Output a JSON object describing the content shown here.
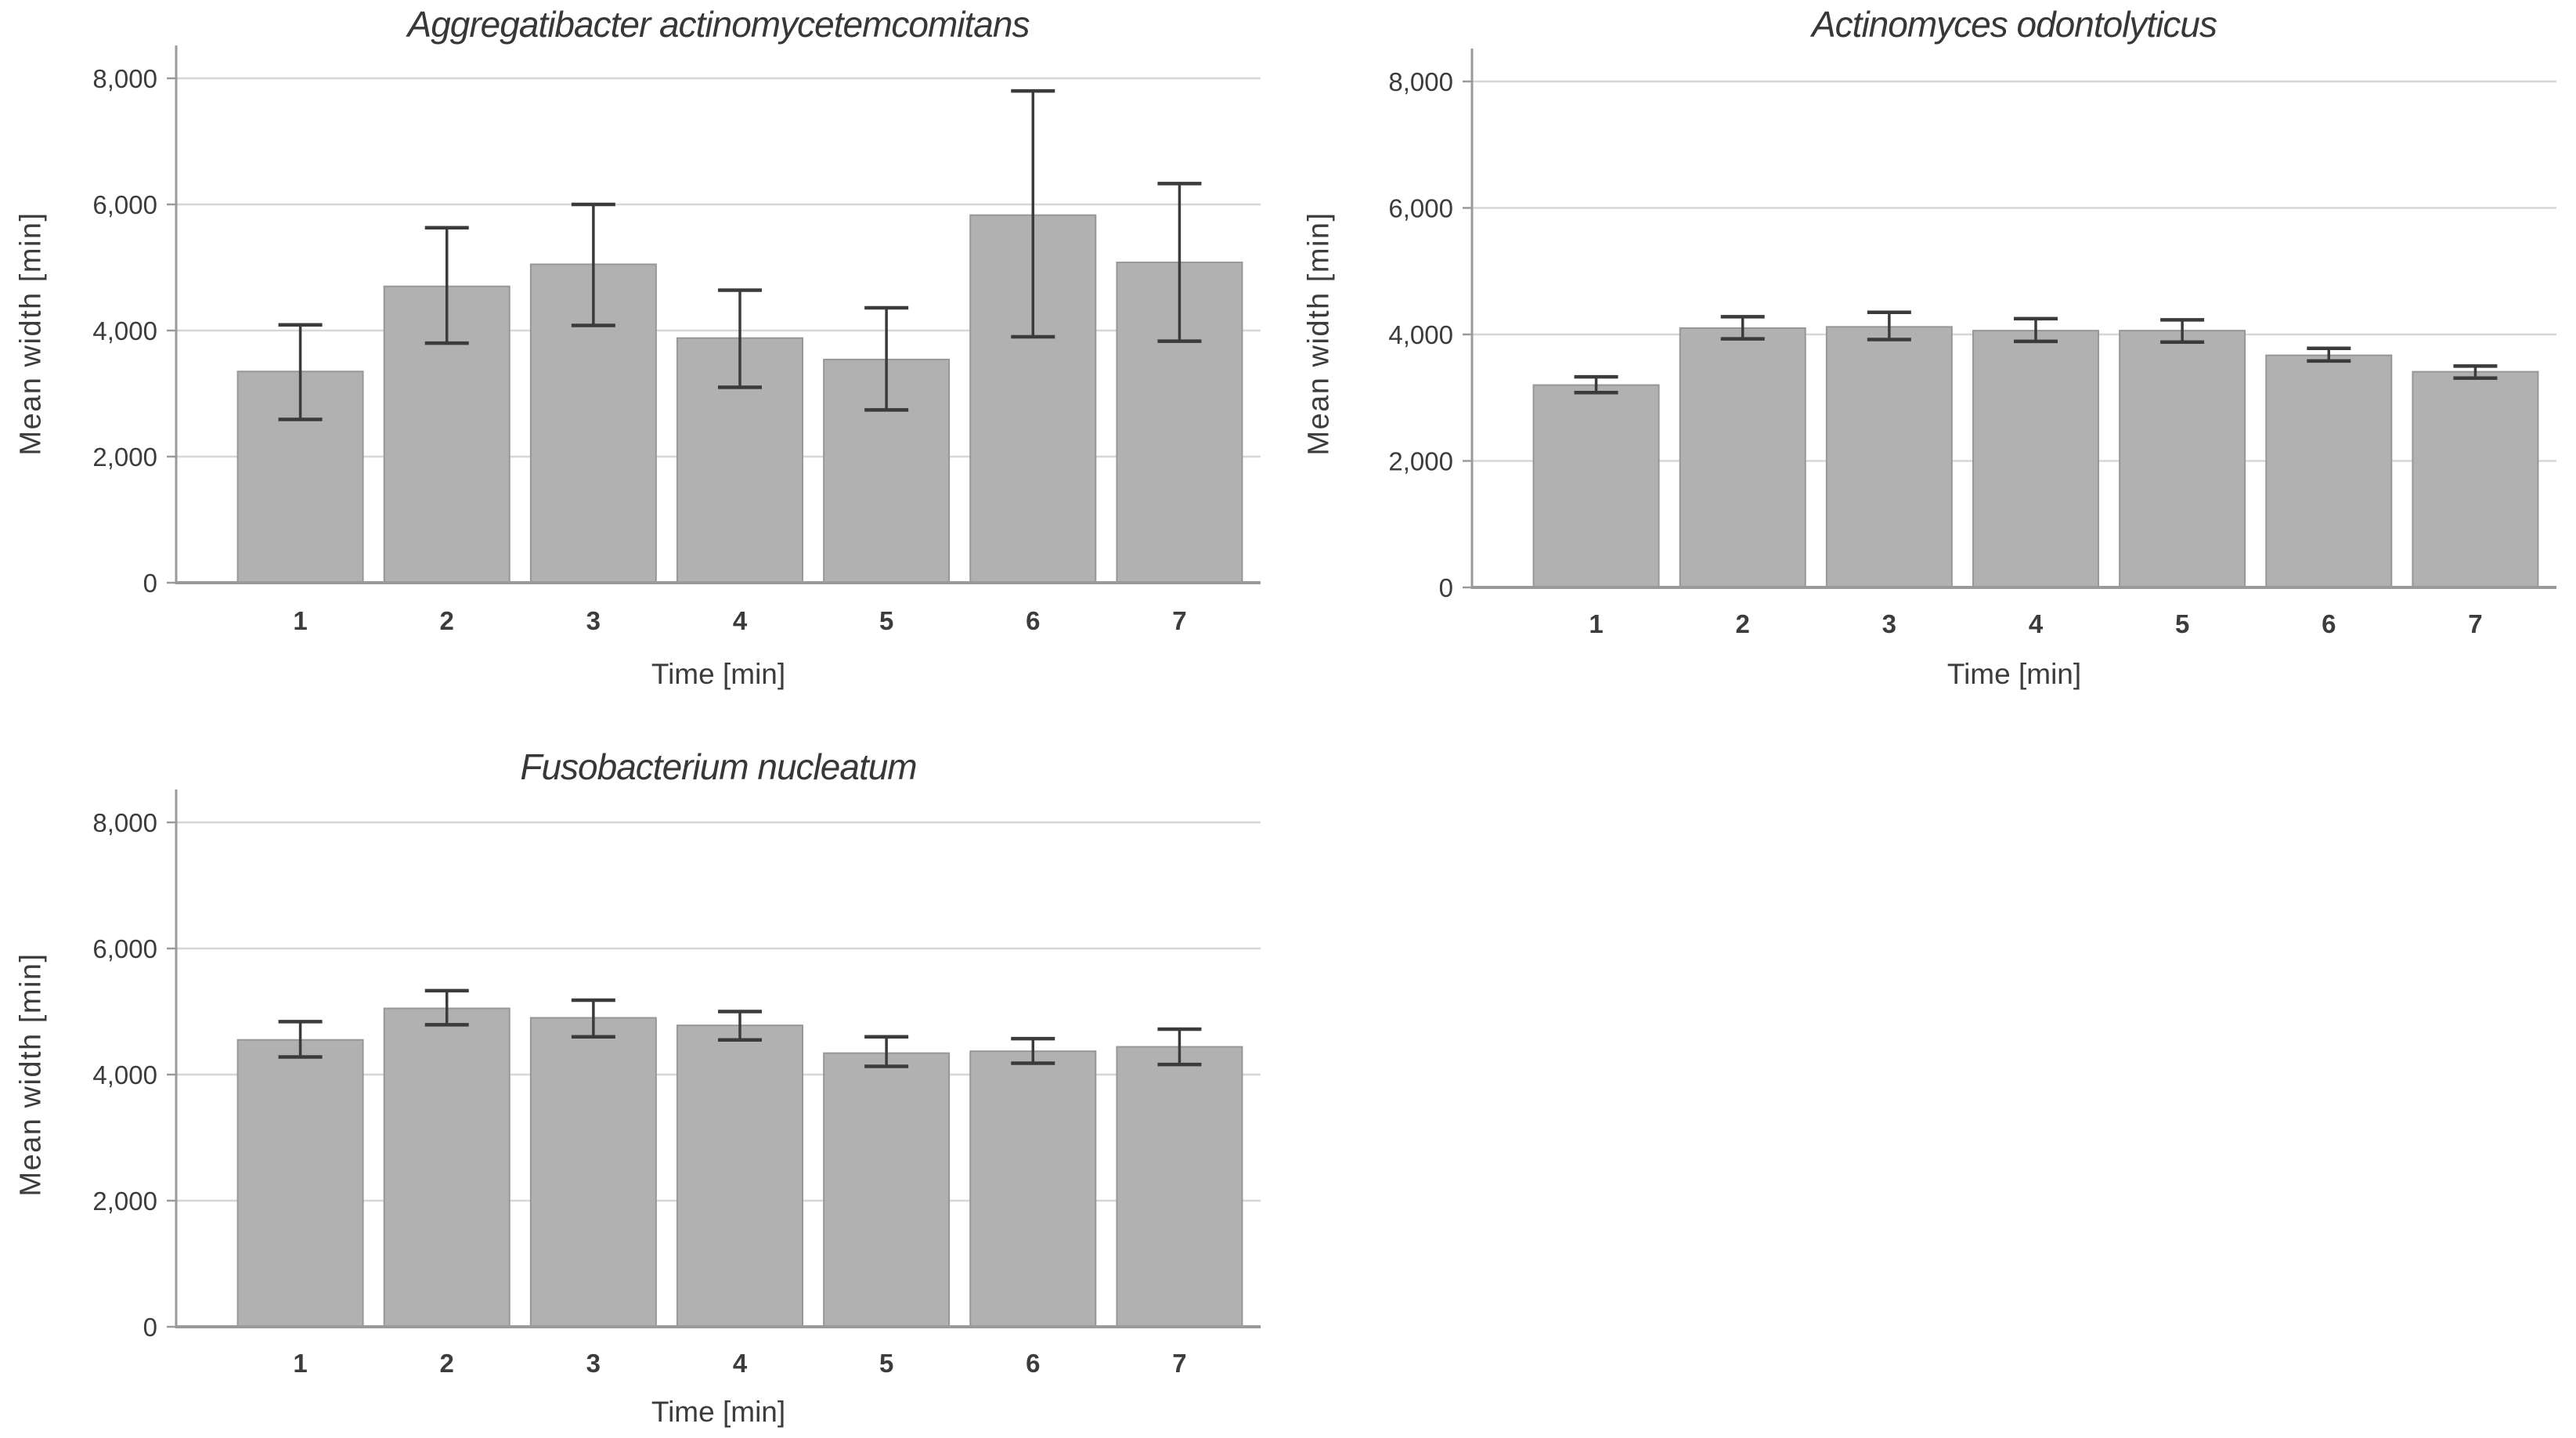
{
  "page": {
    "background": "#ffffff"
  },
  "colors": {
    "bar_fill": "#b1b1b1",
    "bar_border": "#979797",
    "error_bar": "#3b3b3b",
    "gridline": "#d7d7d7",
    "axis_line": "#9a9a9a",
    "text": "#3c3c3c",
    "title_text": "#373737"
  },
  "chart_data": [
    {
      "type": "bar",
      "title": "Aggregatibacter actinomycetemcomitans",
      "xlabel": "Time [min]",
      "ylabel": "Mean width [min]",
      "categories": [
        "1",
        "2",
        "3",
        "4",
        "5",
        "6",
        "7"
      ],
      "values": [
        3350,
        4700,
        5050,
        3880,
        3540,
        5830,
        5080
      ],
      "error_upper": [
        4090,
        5630,
        6000,
        4640,
        4360,
        7800,
        6330
      ],
      "error_lower": [
        2590,
        3800,
        4080,
        3100,
        2740,
        3900,
        3830
      ],
      "ylim": [
        0,
        8000
      ],
      "yticks": [
        0,
        2000,
        4000,
        6000,
        8000
      ],
      "ytick_labels": [
        "0",
        "2,000",
        "4,000",
        "6,000",
        "8,000"
      ],
      "grid": true
    },
    {
      "type": "bar",
      "title": "Actinomyces odontolyticus",
      "xlabel": "Time [min]",
      "ylabel": "Mean width [min]",
      "categories": [
        "1",
        "2",
        "3",
        "4",
        "5",
        "6",
        "7"
      ],
      "values": [
        3200,
        4100,
        4120,
        4060,
        4060,
        3670,
        3410
      ],
      "error_upper": [
        3330,
        4280,
        4350,
        4250,
        4230,
        3780,
        3500
      ],
      "error_lower": [
        3080,
        3930,
        3920,
        3890,
        3880,
        3580,
        3310
      ],
      "ylim": [
        0,
        8000
      ],
      "yticks": [
        0,
        2000,
        4000,
        6000,
        8000
      ],
      "ytick_labels": [
        "0",
        "2,000",
        "4,000",
        "6,000",
        "8,000"
      ],
      "grid": true
    },
    {
      "type": "bar",
      "title": "Fusobacterium nucleatum",
      "xlabel": "Time [min]",
      "ylabel": "Mean width [min]",
      "categories": [
        "1",
        "2",
        "3",
        "4",
        "5",
        "6",
        "7"
      ],
      "values": [
        4550,
        5050,
        4900,
        4780,
        4340,
        4370,
        4440
      ],
      "error_upper": [
        4840,
        5330,
        5180,
        5000,
        4600,
        4570,
        4720
      ],
      "error_lower": [
        4280,
        4790,
        4600,
        4550,
        4130,
        4180,
        4160
      ],
      "ylim": [
        0,
        8000
      ],
      "yticks": [
        0,
        2000,
        4000,
        6000,
        8000
      ],
      "ytick_labels": [
        "0",
        "2,000",
        "4,000",
        "6,000",
        "8,000"
      ],
      "grid": true
    }
  ]
}
